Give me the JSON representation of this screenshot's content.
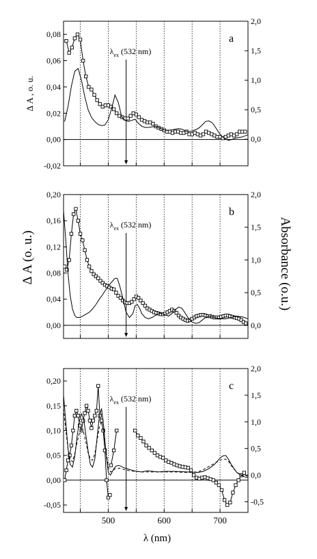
{
  "figure": {
    "left_axis_label": "Δ A (o. u.)",
    "right_axis_label": "Absorbance (o.u.)",
    "x_axis_label": "λ (nm)"
  },
  "chart_data": [
    {
      "type": "line",
      "panel": "a",
      "annotation": {
        "symbol": "λ",
        "subscript": "ex",
        "text": "(532 nm)",
        "x": 532
      },
      "ylabel_left": "Δ A , o. u.",
      "xlim": [
        420,
        750
      ],
      "ylim_left": [
        -0.02,
        0.09
      ],
      "ylim_right": [
        -0.45,
        2.0
      ],
      "yticks_left": [
        "-0,02",
        "0,00",
        "0,02",
        "0,04",
        "0,06",
        "0,08"
      ],
      "yticks_right": [
        "0,0",
        "0,5",
        "1,0",
        "1,5",
        "2,0"
      ],
      "vlines": [
        450,
        500,
        550,
        600,
        650,
        700
      ],
      "series": [
        {
          "axis": "left",
          "style": "markers-line",
          "x": [
            425,
            430,
            435,
            440,
            445,
            450,
            455,
            460,
            465,
            470,
            475,
            480,
            485,
            490,
            495,
            500,
            505,
            510,
            515,
            520,
            525,
            530,
            535,
            540,
            545,
            550,
            555,
            560,
            565,
            570,
            575,
            580,
            585,
            590,
            595,
            600,
            605,
            610,
            615,
            620,
            625,
            630,
            635,
            640,
            645,
            650,
            655,
            660,
            665,
            670,
            675,
            680,
            685,
            690,
            695,
            700,
            705,
            710,
            715,
            720,
            725,
            730,
            735,
            740,
            745
          ],
          "y": [
            0.075,
            0.066,
            0.07,
            0.077,
            0.08,
            0.076,
            0.06,
            0.048,
            0.04,
            0.038,
            0.034,
            0.03,
            0.027,
            0.025,
            0.026,
            0.026,
            0.025,
            0.023,
            0.02,
            0.018,
            0.017,
            0.016,
            0.016,
            0.018,
            0.02,
            0.019,
            0.017,
            0.015,
            0.014,
            0.013,
            0.013,
            0.012,
            0.01,
            0.009,
            0.008,
            0.007,
            0.006,
            0.006,
            0.005,
            0.006,
            0.006,
            0.005,
            0.005,
            0.006,
            0.004,
            0.004,
            0.005,
            0.004,
            0.003,
            0.004,
            0.006,
            0.005,
            0.004,
            0.003,
            0.002,
            0.002,
            0.001,
            0.002,
            0.003,
            0.004,
            0.003,
            0.004,
            0.006,
            0.006,
            0.006
          ]
        },
        {
          "axis": "right",
          "style": "line",
          "x": [
            422,
            428,
            434,
            440,
            446,
            452,
            458,
            464,
            470,
            476,
            482,
            488,
            494,
            500,
            506,
            512,
            518,
            524,
            530,
            536,
            542,
            548,
            554,
            560,
            566,
            572,
            578,
            584,
            590,
            596,
            602,
            608,
            614,
            620,
            626,
            632,
            638,
            644,
            650,
            656,
            662,
            668,
            674,
            680,
            686,
            692,
            698,
            704,
            710,
            716,
            722,
            728,
            734,
            740,
            746,
            750
          ],
          "y": [
            0.3,
            0.55,
            0.9,
            1.15,
            1.2,
            1.0,
            0.72,
            0.5,
            0.37,
            0.3,
            0.25,
            0.23,
            0.24,
            0.33,
            0.52,
            0.75,
            0.62,
            0.38,
            0.32,
            0.3,
            0.32,
            0.34,
            0.27,
            0.22,
            0.2,
            0.2,
            0.21,
            0.22,
            0.2,
            0.17,
            0.15,
            0.15,
            0.16,
            0.17,
            0.18,
            0.17,
            0.14,
            0.13,
            0.14,
            0.16,
            0.19,
            0.24,
            0.3,
            0.31,
            0.28,
            0.2,
            0.11,
            0.04,
            0.0,
            -0.02,
            0.0,
            0.02,
            0.03,
            0.04,
            0.06,
            0.08
          ]
        }
      ]
    },
    {
      "type": "line",
      "panel": "b",
      "annotation": {
        "symbol": "λ",
        "subscript": "ex",
        "text": "(532 nm)",
        "x": 532
      },
      "xlim": [
        420,
        750
      ],
      "ylim_left": [
        -0.02,
        0.2
      ],
      "ylim_right": [
        -0.2,
        2.0
      ],
      "yticks_left": [
        "0,00",
        "0,04",
        "0,08",
        "0,12",
        "0,16",
        "0,20"
      ],
      "yticks_right": [
        "0,0",
        "0,5",
        "1,0",
        "1,5",
        "2,0"
      ],
      "vlines": [
        450,
        500,
        550,
        600,
        650,
        700
      ],
      "series": [
        {
          "axis": "left",
          "style": "markers-line",
          "x": [
            422,
            426,
            430,
            434,
            438,
            442,
            446,
            450,
            454,
            458,
            462,
            466,
            470,
            474,
            478,
            482,
            486,
            490,
            494,
            498,
            502,
            506,
            510,
            514,
            518,
            522,
            526,
            530,
            534,
            538,
            542,
            546,
            550,
            554,
            558,
            562,
            566,
            570,
            574,
            578,
            582,
            586,
            590,
            594,
            598,
            602,
            606,
            610,
            614,
            618,
            622,
            626,
            630,
            634,
            638,
            642,
            646,
            650,
            654,
            658,
            662,
            666,
            670,
            674,
            678,
            682,
            686,
            690,
            694,
            698,
            702,
            706,
            710,
            714,
            718,
            722,
            726,
            730,
            734,
            738,
            742,
            746
          ],
          "y": [
            0.09,
            0.085,
            0.1,
            0.14,
            0.17,
            0.178,
            0.16,
            0.14,
            0.13,
            0.115,
            0.1,
            0.09,
            0.083,
            0.078,
            0.075,
            0.072,
            0.068,
            0.065,
            0.062,
            0.06,
            0.058,
            0.056,
            0.055,
            0.05,
            0.045,
            0.042,
            0.038,
            0.035,
            0.034,
            0.034,
            0.036,
            0.04,
            0.044,
            0.042,
            0.038,
            0.034,
            0.03,
            0.026,
            0.024,
            0.022,
            0.02,
            0.019,
            0.018,
            0.017,
            0.017,
            0.018,
            0.02,
            0.022,
            0.024,
            0.022,
            0.019,
            0.015,
            0.012,
            0.01,
            0.008,
            0.007,
            0.008,
            0.01,
            0.012,
            0.014,
            0.015,
            0.016,
            0.016,
            0.015,
            0.014,
            0.014,
            0.013,
            0.012,
            0.012,
            0.012,
            0.013,
            0.014,
            0.015,
            0.015,
            0.014,
            0.013,
            0.012,
            0.011,
            0.01,
            0.008,
            0.005,
            0.003
          ]
        },
        {
          "axis": "right",
          "style": "line",
          "x": [
            420,
            424,
            428,
            432,
            436,
            440,
            444,
            448,
            452,
            456,
            460,
            466,
            472,
            478,
            484,
            490,
            496,
            502,
            508,
            512,
            516,
            520,
            526,
            532,
            538,
            544,
            548,
            552,
            556,
            560,
            566,
            572,
            578,
            584,
            590,
            596,
            602,
            608,
            614,
            620,
            626,
            632,
            638,
            644,
            650,
            656,
            662,
            668,
            674,
            680,
            690,
            700,
            710,
            720,
            730,
            740,
            750
          ],
          "y": [
            1.75,
            1.3,
            0.8,
            0.45,
            0.25,
            0.15,
            0.12,
            0.12,
            0.13,
            0.15,
            0.17,
            0.2,
            0.25,
            0.32,
            0.4,
            0.47,
            0.55,
            0.62,
            0.68,
            0.72,
            0.72,
            0.62,
            0.42,
            0.2,
            0.12,
            0.18,
            0.3,
            0.32,
            0.26,
            0.18,
            0.12,
            0.1,
            0.12,
            0.15,
            0.18,
            0.18,
            0.16,
            0.14,
            0.18,
            0.24,
            0.28,
            0.26,
            0.18,
            0.1,
            0.05,
            0.03,
            0.04,
            0.08,
            0.12,
            0.14,
            0.12,
            0.1,
            0.1,
            0.12,
            0.14,
            0.13,
            0.1
          ]
        }
      ]
    },
    {
      "type": "line",
      "panel": "c",
      "annotation": {
        "symbol": "λ",
        "subscript": "ex",
        "text": "(532 nm)",
        "x": 532
      },
      "xlim": [
        420,
        750
      ],
      "xticks": [
        500,
        600,
        700
      ],
      "ylim_left": [
        -0.065,
        0.225
      ],
      "ylim_right": [
        -0.7,
        2.0
      ],
      "yticks_left": [
        "-0,05",
        "0,00",
        "0,05",
        "0,10",
        "0,15",
        "0,20"
      ],
      "yticks_right": [
        "-0,5",
        "0,0",
        "0,5",
        "1,0",
        "1,5",
        "2,0"
      ],
      "vlines": [
        450,
        500,
        550,
        600,
        650,
        700
      ],
      "series": [
        {
          "axis": "left",
          "style": "markers-line",
          "x": [
            422,
            425,
            428,
            431,
            434,
            437,
            440,
            443,
            446,
            449,
            452,
            455,
            458,
            461,
            464,
            467,
            470,
            473,
            476,
            479,
            482,
            485,
            488,
            491,
            494,
            497,
            500,
            503
          ],
          "y": [
            0.0,
            0.02,
            0.04,
            0.05,
            0.07,
            0.1,
            0.13,
            0.14,
            0.13,
            0.11,
            0.1,
            0.12,
            0.135,
            0.15,
            0.14,
            0.12,
            0.105,
            0.12,
            0.13,
            0.14,
            0.19,
            0.13,
            0.12,
            0.1,
            0.06,
            0.0,
            -0.035,
            -0.03
          ]
        },
        {
          "axis": "left",
          "style": "markers-line",
          "x": [
            505,
            510,
            515
          ],
          "y": [
            0.03,
            0.06,
            0.1
          ]
        },
        {
          "axis": "left",
          "style": "markers-line",
          "x": [
            548,
            553,
            558,
            563,
            568,
            573,
            578,
            583,
            588,
            593,
            598,
            603,
            608,
            613,
            618,
            623,
            628,
            633,
            638,
            643,
            648,
            653,
            658,
            663,
            668,
            673,
            678,
            683,
            688,
            693,
            698,
            703,
            708,
            713,
            718,
            723,
            728,
            733,
            738,
            743
          ],
          "y": [
            0.1,
            0.09,
            0.085,
            0.078,
            0.07,
            0.065,
            0.06,
            0.055,
            0.05,
            0.047,
            0.045,
            0.04,
            0.037,
            0.035,
            0.032,
            0.03,
            0.028,
            0.027,
            0.026,
            0.025,
            0.02,
            0.01,
            0.005,
            0.003,
            0.005,
            0.006,
            0.004,
            0.002,
            0.0,
            -0.005,
            -0.01,
            -0.02,
            -0.04,
            -0.05,
            -0.045,
            -0.025,
            -0.01,
            0.0,
            0.01,
            0.015
          ]
        },
        {
          "axis": "right",
          "style": "line",
          "x": [
            420,
            424,
            428,
            432,
            436,
            440,
            444,
            448,
            452,
            456,
            460,
            464,
            468,
            472,
            476,
            480,
            484,
            488,
            492,
            496,
            500,
            504,
            508,
            512,
            516,
            520,
            530,
            540,
            550,
            560,
            570,
            580,
            590,
            600,
            620,
            640,
            660,
            670,
            680,
            690,
            700,
            705,
            710,
            715,
            720,
            730,
            740,
            750
          ],
          "y": [
            1.5,
            1.0,
            0.5,
            0.2,
            0.15,
            0.35,
            0.7,
            1.0,
            1.15,
            1.05,
            0.75,
            0.45,
            0.2,
            0.15,
            0.3,
            0.7,
            1.1,
            1.25,
            0.9,
            0.4,
            0.05,
            0.0,
            0.08,
            0.15,
            0.18,
            0.18,
            0.13,
            0.1,
            0.07,
            0.06,
            0.08,
            0.07,
            0.06,
            0.07,
            0.07,
            0.06,
            0.05,
            0.07,
            0.12,
            0.2,
            0.32,
            0.36,
            0.37,
            0.3,
            0.2,
            0.05,
            -0.02,
            -0.05
          ]
        },
        {
          "axis": "right",
          "style": "dashed",
          "x": [
            420,
            424,
            428,
            432,
            436,
            440,
            444,
            448,
            452,
            456,
            460,
            464,
            468,
            472,
            476,
            480,
            484,
            488,
            492,
            496,
            500,
            504,
            508,
            512,
            520,
            530,
            540,
            560,
            580,
            600,
            620,
            640,
            660,
            670,
            680,
            690,
            700,
            705,
            710,
            715,
            720,
            730,
            740,
            750
          ],
          "y": [
            1.25,
            0.85,
            0.5,
            0.3,
            0.25,
            0.4,
            0.6,
            0.78,
            0.85,
            0.8,
            0.62,
            0.42,
            0.3,
            0.28,
            0.4,
            0.65,
            0.9,
            1.0,
            0.8,
            0.45,
            0.15,
            0.06,
            0.08,
            0.12,
            0.13,
            0.1,
            0.08,
            0.06,
            0.06,
            0.06,
            0.06,
            0.05,
            0.06,
            0.1,
            0.16,
            0.22,
            0.28,
            0.3,
            0.3,
            0.26,
            0.18,
            0.05,
            0.0,
            -0.02
          ]
        }
      ]
    }
  ]
}
